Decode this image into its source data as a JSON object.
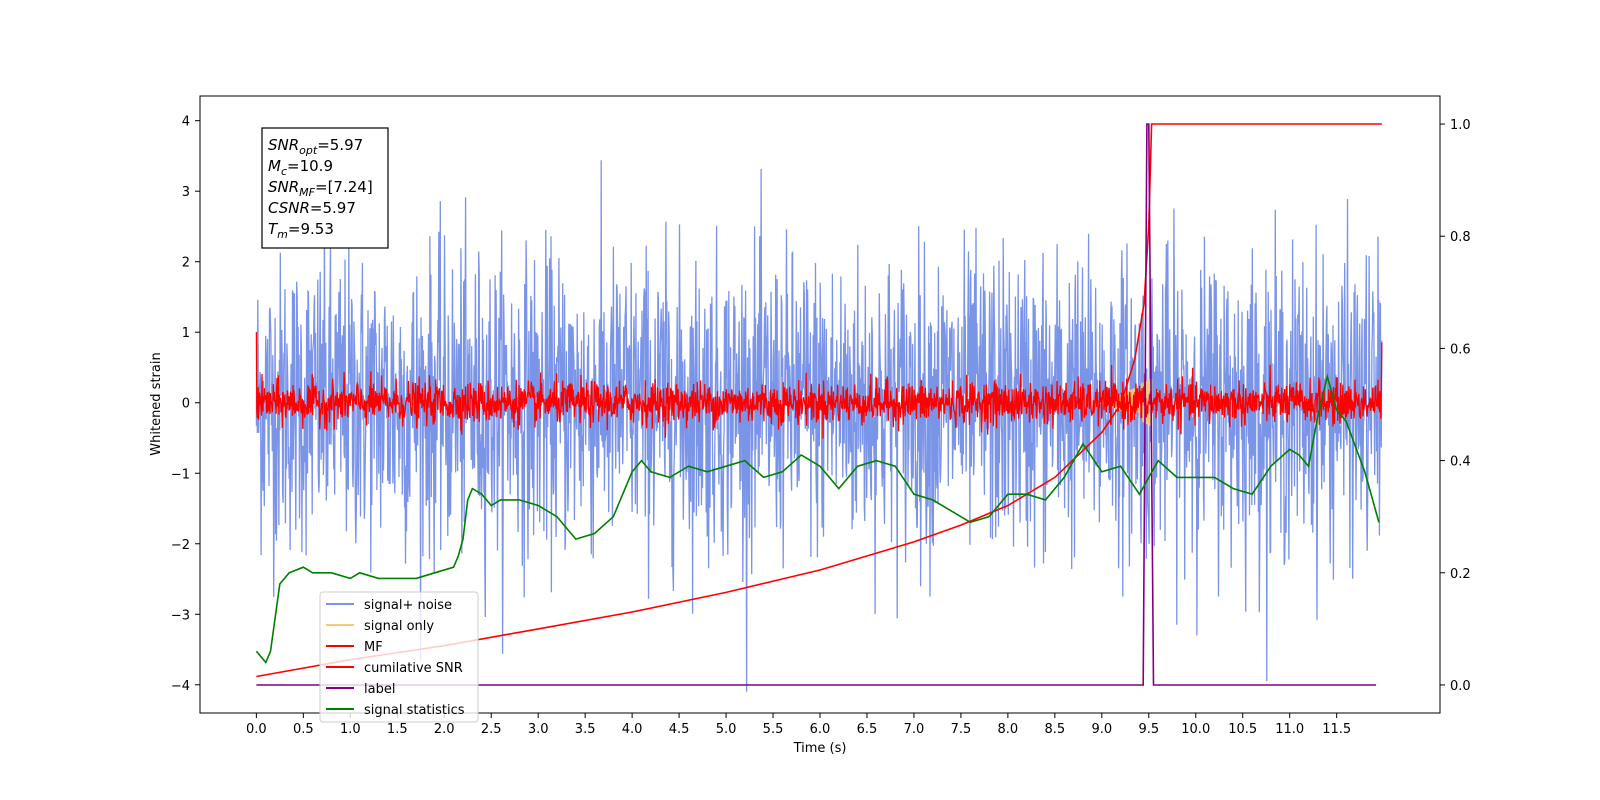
{
  "chart_data": {
    "type": "line",
    "xlabel": "Time (s)",
    "ylabel": "Whitened strain",
    "xlim": [
      -0.6,
      12.6
    ],
    "ylim_left": [
      -4.4,
      4.35
    ],
    "ylim_right": [
      -0.05,
      1.05
    ],
    "x_ticks": [
      "0.0",
      "0.5",
      "1.0",
      "1.5",
      "2.0",
      "2.5",
      "3.0",
      "3.5",
      "4.0",
      "4.5",
      "5.0",
      "5.5",
      "6.0",
      "6.5",
      "7.0",
      "7.5",
      "8.0",
      "8.5",
      "9.0",
      "9.5",
      "10.0",
      "10.5",
      "11.0",
      "11.5"
    ],
    "y_ticks_left": [
      "4",
      "3",
      "2",
      "1",
      "0",
      "−1",
      "−2",
      "−3",
      "−4"
    ],
    "y_ticks_right": [
      "1.0",
      "0.8",
      "0.6",
      "0.4",
      "0.2",
      "0.0"
    ],
    "grid": false,
    "legend_position": "lower-left",
    "info_box": {
      "lines": [
        {
          "base": "SNR",
          "sub": "opt",
          "value": "=5.97"
        },
        {
          "base": "M",
          "sub": "c",
          "value": "=10.9"
        },
        {
          "base": "SNR",
          "sub": "MF",
          "value": "=[7.24]"
        },
        {
          "base": "CSNR",
          "sub": "",
          "value": "=5.97"
        },
        {
          "base": "T",
          "sub": "m",
          "value": "=9.53"
        }
      ]
    },
    "series": [
      {
        "name": "signal+ noise",
        "axis": "left",
        "color": "#7a94e8",
        "description_only": false,
        "noise_std": 1.0,
        "x_range": [
          0.0,
          11.98
        ]
      },
      {
        "name": "signal only",
        "axis": "left",
        "color": "#f5c97a",
        "x_range": [
          8.9,
          9.53
        ],
        "peak_amplitude": 0.35
      },
      {
        "name": "MF",
        "axis": "left",
        "color": "#ff0000",
        "noise_std": 0.15,
        "x_range": [
          0.0,
          11.98
        ]
      },
      {
        "name": "cumilative SNR",
        "axis": "right",
        "color": "#ff0000",
        "x": [
          0.0,
          0.5,
          1.0,
          2.0,
          3.0,
          4.0,
          5.0,
          6.0,
          7.0,
          7.5,
          8.0,
          8.5,
          9.0,
          9.2,
          9.35,
          9.45,
          9.5,
          9.53,
          11.98
        ],
        "values": [
          0.015,
          0.03,
          0.045,
          0.07,
          0.1,
          0.13,
          0.165,
          0.205,
          0.255,
          0.285,
          0.32,
          0.37,
          0.45,
          0.5,
          0.58,
          0.68,
          0.82,
          1.0,
          1.0
        ]
      },
      {
        "name": "label",
        "axis": "right",
        "color": "#800080",
        "x": [
          0.0,
          9.44,
          9.48,
          9.5,
          9.55,
          9.58,
          11.92
        ],
        "values": [
          0.0,
          0.0,
          1.0,
          1.0,
          0.0,
          0.0,
          0.0
        ]
      },
      {
        "name": "signal statistics",
        "axis": "right",
        "color": "#008000",
        "x": [
          0.0,
          0.1,
          0.15,
          0.25,
          0.35,
          0.5,
          0.6,
          0.8,
          1.0,
          1.1,
          1.3,
          1.5,
          1.7,
          1.9,
          2.1,
          2.15,
          2.2,
          2.25,
          2.3,
          2.4,
          2.5,
          2.6,
          2.8,
          3.0,
          3.2,
          3.4,
          3.6,
          3.8,
          4.0,
          4.1,
          4.2,
          4.4,
          4.6,
          4.8,
          5.0,
          5.2,
          5.4,
          5.6,
          5.8,
          5.9,
          6.0,
          6.2,
          6.4,
          6.6,
          6.8,
          7.0,
          7.2,
          7.4,
          7.6,
          7.8,
          8.0,
          8.2,
          8.4,
          8.6,
          8.8,
          9.0,
          9.2,
          9.4,
          9.6,
          9.8,
          10.0,
          10.2,
          10.4,
          10.6,
          10.8,
          11.0,
          11.1,
          11.2,
          11.3,
          11.4,
          11.5,
          11.6,
          11.8,
          11.95
        ],
        "values": [
          0.06,
          0.04,
          0.06,
          0.18,
          0.2,
          0.21,
          0.2,
          0.2,
          0.19,
          0.2,
          0.19,
          0.19,
          0.19,
          0.2,
          0.21,
          0.23,
          0.26,
          0.33,
          0.35,
          0.34,
          0.32,
          0.33,
          0.33,
          0.32,
          0.3,
          0.26,
          0.27,
          0.3,
          0.38,
          0.4,
          0.38,
          0.37,
          0.39,
          0.38,
          0.39,
          0.4,
          0.37,
          0.38,
          0.41,
          0.4,
          0.39,
          0.35,
          0.39,
          0.4,
          0.39,
          0.34,
          0.33,
          0.31,
          0.29,
          0.3,
          0.34,
          0.34,
          0.33,
          0.37,
          0.43,
          0.38,
          0.39,
          0.34,
          0.4,
          0.37,
          0.37,
          0.37,
          0.35,
          0.34,
          0.39,
          0.42,
          0.41,
          0.39,
          0.48,
          0.55,
          0.49,
          0.47,
          0.38,
          0.29
        ]
      }
    ]
  }
}
